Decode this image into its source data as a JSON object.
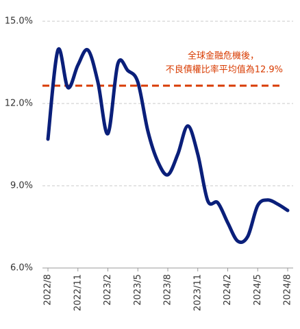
{
  "chart_data": {
    "type": "line",
    "categories": [
      "2022/8",
      null,
      null,
      "2022/11",
      null,
      null,
      "2023/2",
      null,
      null,
      "2023/5",
      null,
      null,
      "2023/8",
      null,
      null,
      "2023/11",
      null,
      null,
      "2024/2",
      null,
      null,
      "2024/5",
      null,
      null,
      "2024/8"
    ],
    "series": [
      {
        "color": "#0a1f7a",
        "values": [
          10.7,
          13.95,
          12.58,
          13.4,
          13.95,
          12.78,
          10.9,
          13.45,
          13.2,
          12.78,
          11.0,
          9.88,
          9.4,
          10.15,
          11.18,
          10.15,
          8.45,
          8.38,
          7.65,
          6.98,
          7.15,
          8.28,
          8.48,
          8.33,
          8.1
        ]
      }
    ],
    "ylim": [
      6,
      15
    ],
    "yticks": [
      {
        "value": 6,
        "label": "6.0%"
      },
      {
        "value": 9,
        "label": "9.0%"
      },
      {
        "value": 12,
        "label": "12.0%"
      },
      {
        "value": 15,
        "label": "15.0%"
      }
    ],
    "grid": true,
    "reference_line": {
      "value": 12.65,
      "color": "#d83b01"
    },
    "annotation": [
      "全球金融危機後，",
      "不良債權比率平均值為12.9%"
    ]
  }
}
